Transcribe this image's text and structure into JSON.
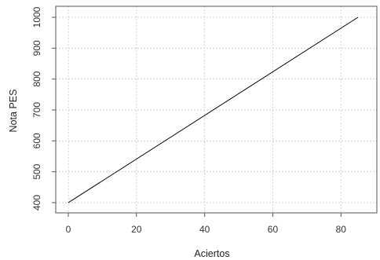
{
  "chart_data": {
    "type": "line",
    "title": "",
    "xlabel": "Aciertos",
    "ylabel": "Nota PES",
    "xlim": [
      0,
      85
    ],
    "ylim": [
      400,
      1000
    ],
    "x_ticks": [
      0,
      20,
      40,
      60,
      80
    ],
    "y_ticks": [
      400,
      500,
      600,
      700,
      800,
      900,
      1000
    ],
    "grid": true,
    "series": [
      {
        "x": [
          0,
          85
        ],
        "y": [
          400,
          1000
        ],
        "color": "#000000"
      }
    ]
  }
}
